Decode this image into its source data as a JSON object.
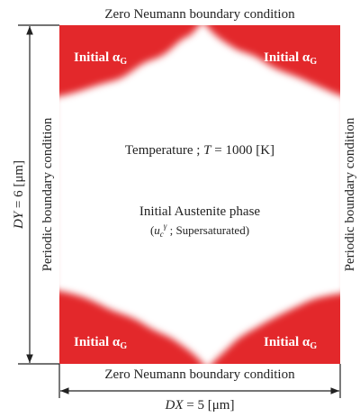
{
  "boundaries": {
    "top": "Zero Neumann boundary condition",
    "bottom": "Zero Neumann boundary condition",
    "left": "Periodic boundary condition",
    "right": "Periodic boundary condition"
  },
  "dimensions": {
    "dy": {
      "symbol": "DY",
      "value": " = 6 [μm]"
    },
    "dx": {
      "symbol": "DX",
      "value": " = 5 [μm]"
    }
  },
  "corner_labels": [
    {
      "text": "Initial α",
      "subscript": "G"
    },
    {
      "text": "Initial α",
      "subscript": "G"
    },
    {
      "text": "Initial α",
      "subscript": "G"
    },
    {
      "text": "Initial α",
      "subscript": "G"
    }
  ],
  "temperature": {
    "prefix": "Temperature ; ",
    "symbol": "T",
    "value": " = 1000 [K]"
  },
  "phase": {
    "title": "Initial Austenite phase",
    "note": {
      "open": "(",
      "symbol": "u",
      "symbol_subscript": "c",
      "symbol_superscript": "γ",
      "text": " ; Supersaturated)"
    }
  }
}
